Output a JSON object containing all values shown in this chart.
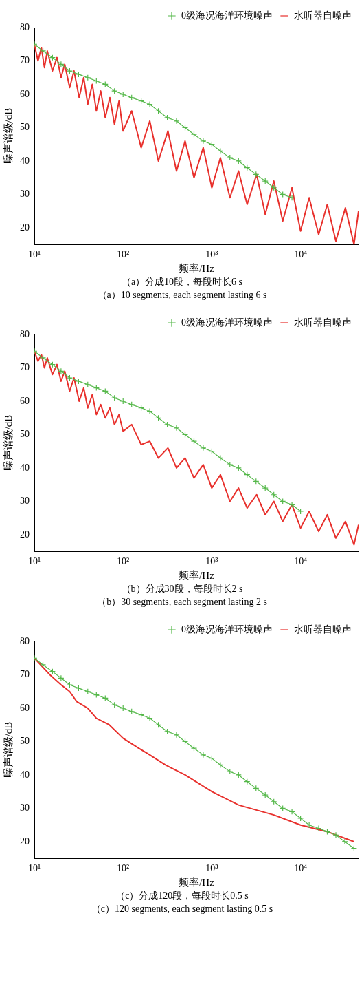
{
  "chart_data": [
    {
      "type": "line",
      "xlabel": "频率/Hz",
      "ylabel": "噪声谱级/dB",
      "log": "x",
      "xlim": [
        10,
        45000
      ],
      "ylim": [
        15,
        80
      ],
      "xticks": [
        {
          "value": 10,
          "label": "10¹"
        },
        {
          "value": 100,
          "label": "10²"
        },
        {
          "value": 1000,
          "label": "10³"
        },
        {
          "value": 10000,
          "label": "10⁴"
        }
      ],
      "yticks": [
        20,
        30,
        40,
        50,
        60,
        70,
        80
      ],
      "grid": false,
      "legend": "top right",
      "annotations": [
        "（a）分成10段，每段时长6 s",
        "（a）10 segments, each segment lasting 6 s"
      ],
      "series": [
        {
          "name": "0级海况海洋环境噪声",
          "color": "#55b84a",
          "marker": "cross",
          "x": [
            10,
            12.5,
            16,
            20,
            25,
            31.5,
            40,
            50,
            63,
            80,
            100,
            125,
            160,
            200,
            250,
            315,
            400,
            500,
            630,
            800,
            1000,
            1250,
            1600,
            2000,
            2500,
            3150,
            4000,
            5000,
            6300,
            8000
          ],
          "values": [
            75,
            73,
            71,
            69,
            67,
            66,
            65,
            64,
            63,
            61,
            60,
            59,
            58,
            57,
            55,
            53,
            52,
            50,
            48,
            46,
            45,
            43,
            41,
            40,
            38,
            36,
            34,
            32,
            30,
            29
          ]
        },
        {
          "name": "水听器自噪声",
          "color": "#e8302c",
          "marker": "none",
          "x": [
            10,
            11,
            12,
            13,
            14,
            16,
            18,
            20,
            22,
            25,
            28,
            32,
            36,
            40,
            45,
            50,
            56,
            63,
            71,
            80,
            90,
            100,
            125,
            160,
            200,
            250,
            320,
            400,
            500,
            630,
            800,
            1000,
            1250,
            1600,
            2000,
            2500,
            3200,
            4000,
            5000,
            6300,
            8000,
            10000,
            12500,
            16000,
            20000,
            25000,
            32000,
            40000,
            45000
          ],
          "values": [
            75,
            70,
            74,
            68,
            73,
            67,
            71,
            65,
            69,
            62,
            67,
            59,
            65,
            57,
            63,
            55,
            61,
            53,
            59,
            51,
            58,
            49,
            55,
            44,
            52,
            40,
            49,
            37,
            46,
            35,
            44,
            32,
            41,
            29,
            37,
            27,
            36,
            24,
            34,
            22,
            32,
            19,
            29,
            18,
            27,
            16,
            26,
            15,
            25
          ]
        }
      ]
    },
    {
      "type": "line",
      "xlabel": "频率/Hz",
      "ylabel": "噪声谱级/dB",
      "log": "x",
      "xlim": [
        10,
        45000
      ],
      "ylim": [
        15,
        80
      ],
      "xticks": [
        {
          "value": 10,
          "label": "10¹"
        },
        {
          "value": 100,
          "label": "10²"
        },
        {
          "value": 1000,
          "label": "10³"
        },
        {
          "value": 10000,
          "label": "10⁴"
        }
      ],
      "yticks": [
        20,
        30,
        40,
        50,
        60,
        70,
        80
      ],
      "grid": false,
      "legend": "top right",
      "annotations": [
        "（b）分成30段，每段时长2 s",
        "（b）30 segments, each segment lasting 2 s"
      ],
      "series": [
        {
          "name": "0级海况海洋环境噪声",
          "color": "#55b84a",
          "marker": "cross",
          "x": [
            10,
            12.5,
            16,
            20,
            25,
            31.5,
            40,
            50,
            63,
            80,
            100,
            125,
            160,
            200,
            250,
            315,
            400,
            500,
            630,
            800,
            1000,
            1250,
            1600,
            2000,
            2500,
            3150,
            4000,
            5000,
            6300,
            8000,
            10000
          ],
          "values": [
            75,
            73,
            71,
            69,
            67,
            66,
            65,
            64,
            63,
            61,
            60,
            59,
            58,
            57,
            55,
            53,
            52,
            50,
            48,
            46,
            45,
            43,
            41,
            40,
            38,
            36,
            34,
            32,
            30,
            29,
            27
          ]
        },
        {
          "name": "水听器自噪声",
          "color": "#e8302c",
          "marker": "none",
          "x": [
            10,
            11,
            12,
            13,
            14,
            16,
            18,
            20,
            22,
            25,
            28,
            32,
            36,
            40,
            45,
            50,
            56,
            63,
            71,
            80,
            90,
            100,
            125,
            160,
            200,
            250,
            320,
            400,
            500,
            630,
            800,
            1000,
            1250,
            1600,
            2000,
            2500,
            3200,
            4000,
            5000,
            6300,
            8000,
            10000,
            12500,
            16000,
            20000,
            25000,
            32000,
            40000,
            45000
          ],
          "values": [
            75,
            72,
            74,
            70,
            73,
            68,
            71,
            66,
            69,
            63,
            67,
            60,
            64,
            58,
            62,
            56,
            59,
            55,
            58,
            53,
            56,
            51,
            53,
            47,
            48,
            43,
            46,
            40,
            43,
            37,
            41,
            34,
            38,
            30,
            34,
            28,
            32,
            26,
            30,
            24,
            29,
            22,
            27,
            21,
            26,
            19,
            24,
            17,
            23
          ]
        }
      ]
    },
    {
      "type": "line",
      "xlabel": "频率/Hz",
      "ylabel": "噪声谱级/dB",
      "log": "x",
      "xlim": [
        10,
        45000
      ],
      "ylim": [
        15,
        80
      ],
      "xticks": [
        {
          "value": 10,
          "label": "10¹"
        },
        {
          "value": 100,
          "label": "10²"
        },
        {
          "value": 1000,
          "label": "10³"
        },
        {
          "value": 10000,
          "label": "10⁴"
        }
      ],
      "yticks": [
        20,
        30,
        40,
        50,
        60,
        70,
        80
      ],
      "grid": false,
      "legend": "top right",
      "annotations": [
        "（c）分成120段，每段时长0.5 s",
        "（c）120 segments, each segment lasting 0.5 s"
      ],
      "series": [
        {
          "name": "0级海况海洋环境噪声",
          "color": "#55b84a",
          "marker": "cross",
          "x": [
            10,
            12.5,
            16,
            20,
            25,
            31.5,
            40,
            50,
            63,
            80,
            100,
            125,
            160,
            200,
            250,
            315,
            400,
            500,
            630,
            800,
            1000,
            1250,
            1600,
            2000,
            2500,
            3150,
            4000,
            5000,
            6300,
            8000,
            10000,
            12500,
            16000,
            20000,
            25000,
            31500,
            40000
          ],
          "values": [
            75,
            73,
            71,
            69,
            67,
            66,
            65,
            64,
            63,
            61,
            60,
            59,
            58,
            57,
            55,
            53,
            52,
            50,
            48,
            46,
            45,
            43,
            41,
            40,
            38,
            36,
            34,
            32,
            30,
            29,
            27,
            25,
            24,
            23,
            22,
            20,
            18
          ]
        },
        {
          "name": "水听器自噪声",
          "color": "#e8302c",
          "marker": "none",
          "x": [
            10,
            15,
            20,
            25,
            30,
            40,
            50,
            70,
            100,
            150,
            200,
            300,
            500,
            1000,
            2000,
            5000,
            10000,
            20000,
            40000
          ],
          "values": [
            75,
            70,
            67,
            65,
            62,
            60,
            57,
            55,
            51,
            48,
            46,
            43,
            40,
            35,
            31,
            28,
            25,
            23,
            20
          ]
        }
      ]
    }
  ]
}
